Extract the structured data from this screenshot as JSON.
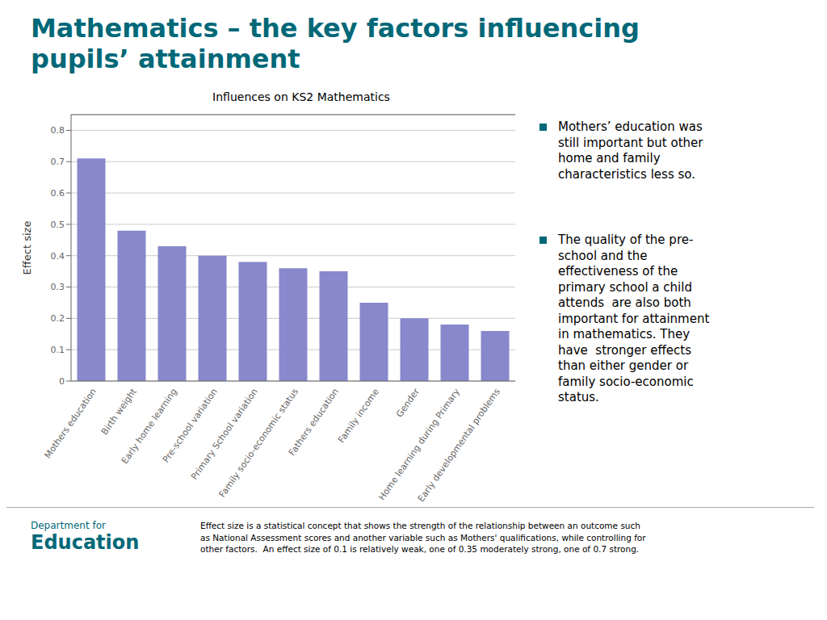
{
  "chart_data": {
    "type": "bar",
    "title": "Influences on KS2 Mathematics",
    "categories": [
      "Mothers education",
      "Birth weight",
      "Early home learning",
      "Pre-school variation",
      "Primary School variation",
      "Family socio-economic status",
      "Fathers education",
      "Family income",
      "Gender",
      "Home learning during Primary",
      "Early developmental problems"
    ],
    "values": [
      0.71,
      0.48,
      0.43,
      0.4,
      0.38,
      0.36,
      0.35,
      0.25,
      0.2,
      0.18,
      0.16
    ],
    "color": "#8888CC",
    "ylabel": "Effect size",
    "ylim": [
      0,
      0.85
    ],
    "yticks": [
      0,
      0.1,
      0.2,
      0.3,
      0.4,
      0.5,
      0.6,
      0.7,
      0.8
    ],
    "grid": true,
    "annotations": [
      {
        "text": "Mathematics – the key factors influencing",
        "color": "#006878"
      },
      {
        "text": "pupils’ attainment",
        "color": "#006878"
      },
      {
        "text": "Mothers’ education was\nstill important but other\nhome and family\ncharacteristics less so.",
        "color": "#006878"
      },
      {
        "text": "The quality of the pre-\nschool and the\neffectiveness of the\nprimary school a child\nattends  are also both\nimportant for attainment\nin mathematics. They\nhave  stronger effects\nthan either gender or\nfamily socio-economic\nstatus.",
        "color": "#006878"
      },
      {
        "text": "Department for",
        "color": "#006878"
      },
      {
        "text": "Education",
        "color": "#006878"
      },
      {
        "text": "Effect size is a statistical concept that shows the strength of the relationship between an outcome such\nas National Assessment scores and another variable such as Mothers' qualifications, while controlling for\nother factors.  An effect size of 0.1 is relatively weak, one of 0.35 moderately strong, one of 0.7 strong."
      }
    ]
  }
}
